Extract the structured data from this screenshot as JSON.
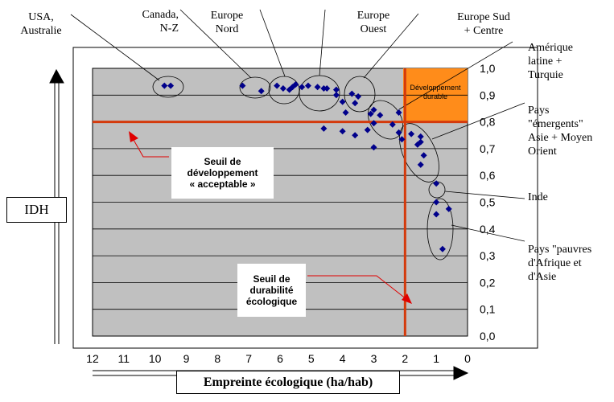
{
  "chart_data": {
    "type": "scatter",
    "title": "",
    "xlabel": "Empreinte écologique (ha/hab)",
    "ylabel": "IDH",
    "xlim": [
      12,
      0
    ],
    "ylim": [
      0,
      1
    ],
    "x_reversed": true,
    "grid": "horizontal",
    "x_ticks": [
      "12",
      "11",
      "10",
      "9",
      "8",
      "7",
      "6",
      "5",
      "4",
      "3",
      "2",
      "1",
      "0"
    ],
    "y_ticks": [
      "0,0",
      "0,1",
      "0,2",
      "0,3",
      "0,4",
      "0,5",
      "0,6",
      "0,7",
      "0,8",
      "0,9",
      "1,0"
    ],
    "thresholds": {
      "idh": 0.8,
      "empreinte": 2
    },
    "sustainable_zone_label": "Développement durable",
    "series": [
      {
        "color": "#00008b",
        "points": [
          {
            "x": 9.7,
            "y": 0.935
          },
          {
            "x": 9.5,
            "y": 0.935
          },
          {
            "x": 7.2,
            "y": 0.935
          },
          {
            "x": 6.6,
            "y": 0.915
          },
          {
            "x": 6.1,
            "y": 0.935
          },
          {
            "x": 5.9,
            "y": 0.925
          },
          {
            "x": 5.7,
            "y": 0.92
          },
          {
            "x": 5.6,
            "y": 0.93
          },
          {
            "x": 5.5,
            "y": 0.94
          },
          {
            "x": 5.3,
            "y": 0.93
          },
          {
            "x": 5.1,
            "y": 0.935
          },
          {
            "x": 4.8,
            "y": 0.93
          },
          {
            "x": 4.6,
            "y": 0.925
          },
          {
            "x": 4.5,
            "y": 0.925
          },
          {
            "x": 4.2,
            "y": 0.92
          },
          {
            "x": 4.2,
            "y": 0.9
          },
          {
            "x": 4.0,
            "y": 0.875
          },
          {
            "x": 3.7,
            "y": 0.905
          },
          {
            "x": 3.5,
            "y": 0.895
          },
          {
            "x": 3.6,
            "y": 0.87
          },
          {
            "x": 3.9,
            "y": 0.835
          },
          {
            "x": 3.1,
            "y": 0.83
          },
          {
            "x": 3.0,
            "y": 0.845
          },
          {
            "x": 2.8,
            "y": 0.825
          },
          {
            "x": 3.0,
            "y": 0.795
          },
          {
            "x": 2.2,
            "y": 0.835
          },
          {
            "x": 4.6,
            "y": 0.775
          },
          {
            "x": 4.0,
            "y": 0.765
          },
          {
            "x": 3.6,
            "y": 0.75
          },
          {
            "x": 3.2,
            "y": 0.77
          },
          {
            "x": 2.4,
            "y": 0.79
          },
          {
            "x": 2.2,
            "y": 0.76
          },
          {
            "x": 2.1,
            "y": 0.735
          },
          {
            "x": 3.0,
            "y": 0.705
          },
          {
            "x": 1.8,
            "y": 0.755
          },
          {
            "x": 1.5,
            "y": 0.745
          },
          {
            "x": 1.5,
            "y": 0.725
          },
          {
            "x": 1.6,
            "y": 0.715
          },
          {
            "x": 1.4,
            "y": 0.675
          },
          {
            "x": 1.5,
            "y": 0.64
          },
          {
            "x": 1.0,
            "y": 0.57
          },
          {
            "x": 1.0,
            "y": 0.5
          },
          {
            "x": 0.6,
            "y": 0.475
          },
          {
            "x": 1.0,
            "y": 0.455
          },
          {
            "x": 0.8,
            "y": 0.325
          }
        ]
      }
    ],
    "annotations": [
      {
        "text": "USA,\nAustralie"
      },
      {
        "text": "Canada,\nN-Z"
      },
      {
        "text": "Europe\nNord"
      },
      {
        "text": "Europe\nOuest"
      },
      {
        "text": "Europe Sud\n+ Centre"
      },
      {
        "text": "Amérique\nlatine +\nTurquie"
      },
      {
        "text": "Pays\n\"émergents\"\nAsie + Moyen\nOrient"
      },
      {
        "text": "Inde"
      },
      {
        "text": "Pays \"pauvres\nd'Afrique et\nd'Asie"
      }
    ],
    "threshold_labels": {
      "idh": "Seuil de\ndéveloppement\n« acceptable »",
      "empreinte": "Seuil de\ndurabilité\nécologique"
    }
  }
}
